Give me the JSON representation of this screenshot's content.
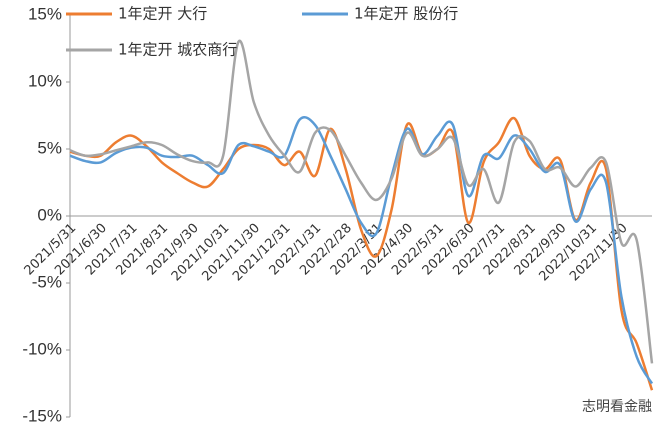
{
  "chart_data": {
    "type": "line",
    "categories": [
      "2021/5/31",
      null,
      "2021/6/30",
      null,
      "2021/7/31",
      null,
      "2021/8/31",
      null,
      "2021/9/30",
      null,
      "2021/10/31",
      null,
      "2021/11/30",
      null,
      "2021/12/31",
      null,
      "2022/1/31",
      null,
      "2022/2/28",
      null,
      "2022/3/31",
      null,
      "2022/4/30",
      null,
      "2022/5/31",
      null,
      "2022/6/30",
      null,
      "2022/7/31",
      null,
      "2022/8/31",
      null,
      "2022/9/30",
      null,
      "2022/10/31",
      null,
      "2022/11/30",
      null,
      null
    ],
    "series": [
      {
        "name": "1年定开 大行",
        "color": "#ed7d31",
        "values": [
          4.8,
          4.5,
          4.5,
          5.5,
          6.0,
          5.2,
          4.0,
          3.2,
          2.5,
          2.2,
          3.5,
          5.0,
          5.3,
          5.0,
          3.8,
          4.8,
          3.0,
          6.5,
          3.5,
          -1,
          -3,
          0.5,
          6.8,
          4.6,
          5.0,
          6.2,
          -0.5,
          4.0,
          5.5,
          7.3,
          4.5,
          3.5,
          4.2,
          -0.3,
          2.5,
          3.5,
          -7,
          -9.5,
          -13
        ]
      },
      {
        "name": "1年定开 股份行",
        "color": "#5b9bd5",
        "values": [
          4.5,
          4.1,
          4.0,
          4.7,
          5.1,
          5.1,
          4.5,
          4.4,
          4.5,
          3.8,
          3.2,
          5.3,
          5.2,
          4.8,
          4.5,
          7.2,
          6.8,
          4.5,
          2.0,
          -0.5,
          -1.3,
          3.0,
          6.5,
          4.6,
          6.0,
          6.8,
          1.5,
          4.5,
          4.3,
          6.0,
          5.0,
          3.3,
          3.8,
          -0.4,
          2.0,
          2.5,
          -6,
          -10.5,
          -12.5
        ]
      },
      {
        "name": "1年定开 城农商行",
        "color": "#a5a5a5",
        "values": [
          4.9,
          4.5,
          4.6,
          4.9,
          5.2,
          5.5,
          5.3,
          4.6,
          4.1,
          4.0,
          4.5,
          13.0,
          8.5,
          6.0,
          4.5,
          3.3,
          6.2,
          6.4,
          4.5,
          2.5,
          1.2,
          2.8,
          6.2,
          4.5,
          5.0,
          5.8,
          2.3,
          3.5,
          1.0,
          5.5,
          5.6,
          3.5,
          3.6,
          2.2,
          3.6,
          4.0,
          -2.0,
          -1.8,
          -11
        ]
      }
    ],
    "ylim": [
      -15,
      15
    ],
    "yticks": [
      {
        "value": 15,
        "label": "15%"
      },
      {
        "value": 10,
        "label": "10%"
      },
      {
        "value": 5,
        "label": "5%"
      },
      {
        "value": 0,
        "label": "0%"
      },
      {
        "value": -5,
        "label": "-5%"
      },
      {
        "value": -10,
        "label": "-10%"
      },
      {
        "value": -15,
        "label": "-15%"
      }
    ],
    "watermark": "志明看金融"
  }
}
